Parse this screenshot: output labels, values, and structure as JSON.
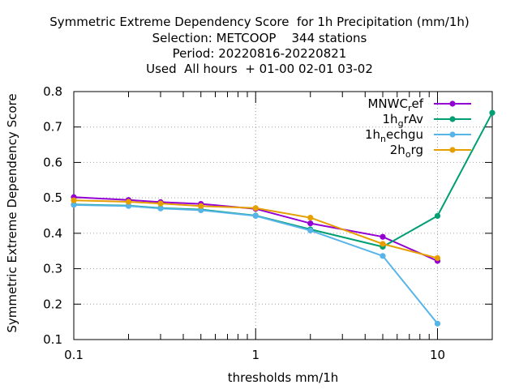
{
  "chart_data": {
    "type": "line",
    "title_lines": [
      "Symmetric Extreme Dependency Score  for 1h Precipitation (mm/1h)",
      "Selection: METCOOP    344 stations",
      "Period: 20220816-20220821",
      "Used  All hours  + 01-00 02-01 03-02"
    ],
    "xlabel": "thresholds mm/1h",
    "ylabel": "Symmetric Extreme Dependency Score",
    "x_scale": "log",
    "xlim": [
      0.1,
      20
    ],
    "ylim": [
      0.1,
      0.8
    ],
    "x_ticks": [
      0.1,
      1,
      10
    ],
    "x_tick_labels": [
      "0.1",
      "1",
      "10"
    ],
    "y_ticks": [
      0.1,
      0.2,
      0.3,
      0.4,
      0.5,
      0.6,
      0.7,
      0.8
    ],
    "y_tick_labels": [
      "0.1",
      "0.2",
      "0.3",
      "0.4",
      "0.5",
      "0.6",
      "0.7",
      "0.8"
    ],
    "grid": "dotted at major ticks",
    "legend_position": "top-right",
    "series": [
      {
        "name": "MNWC_ref",
        "legend_main": "MNWC",
        "legend_sub": "r",
        "legend_tail": "ef",
        "color": "#9400d3",
        "x": [
          0.1,
          0.2,
          0.3,
          0.5,
          1,
          2,
          5,
          10
        ],
        "y": [
          0.502,
          0.494,
          0.488,
          0.483,
          0.469,
          0.428,
          0.39,
          0.322
        ]
      },
      {
        "name": "1h_grAv",
        "legend_main": "1h",
        "legend_sub": "g",
        "legend_tail": "rAv",
        "color": "#009e73",
        "x": [
          0.1,
          0.2,
          0.3,
          0.5,
          1,
          2,
          5,
          10,
          20
        ],
        "y": [
          0.481,
          0.478,
          0.471,
          0.467,
          0.45,
          0.411,
          0.362,
          0.449,
          0.74
        ]
      },
      {
        "name": "1h_nechgu",
        "legend_main": "1h",
        "legend_sub": "n",
        "legend_tail": "echgu",
        "color": "#56b4e9",
        "x": [
          0.1,
          0.2,
          0.3,
          0.5,
          1,
          2,
          5,
          10
        ],
        "y": [
          0.48,
          0.477,
          0.47,
          0.465,
          0.449,
          0.408,
          0.336,
          0.145
        ]
      },
      {
        "name": "2h_org",
        "legend_main": "2h",
        "legend_sub": "o",
        "legend_tail": "rg",
        "color": "#e69f00",
        "x": [
          0.1,
          0.2,
          0.3,
          0.5,
          1,
          2,
          5,
          10
        ],
        "y": [
          0.493,
          0.489,
          0.484,
          0.477,
          0.471,
          0.444,
          0.37,
          0.33
        ]
      }
    ]
  }
}
